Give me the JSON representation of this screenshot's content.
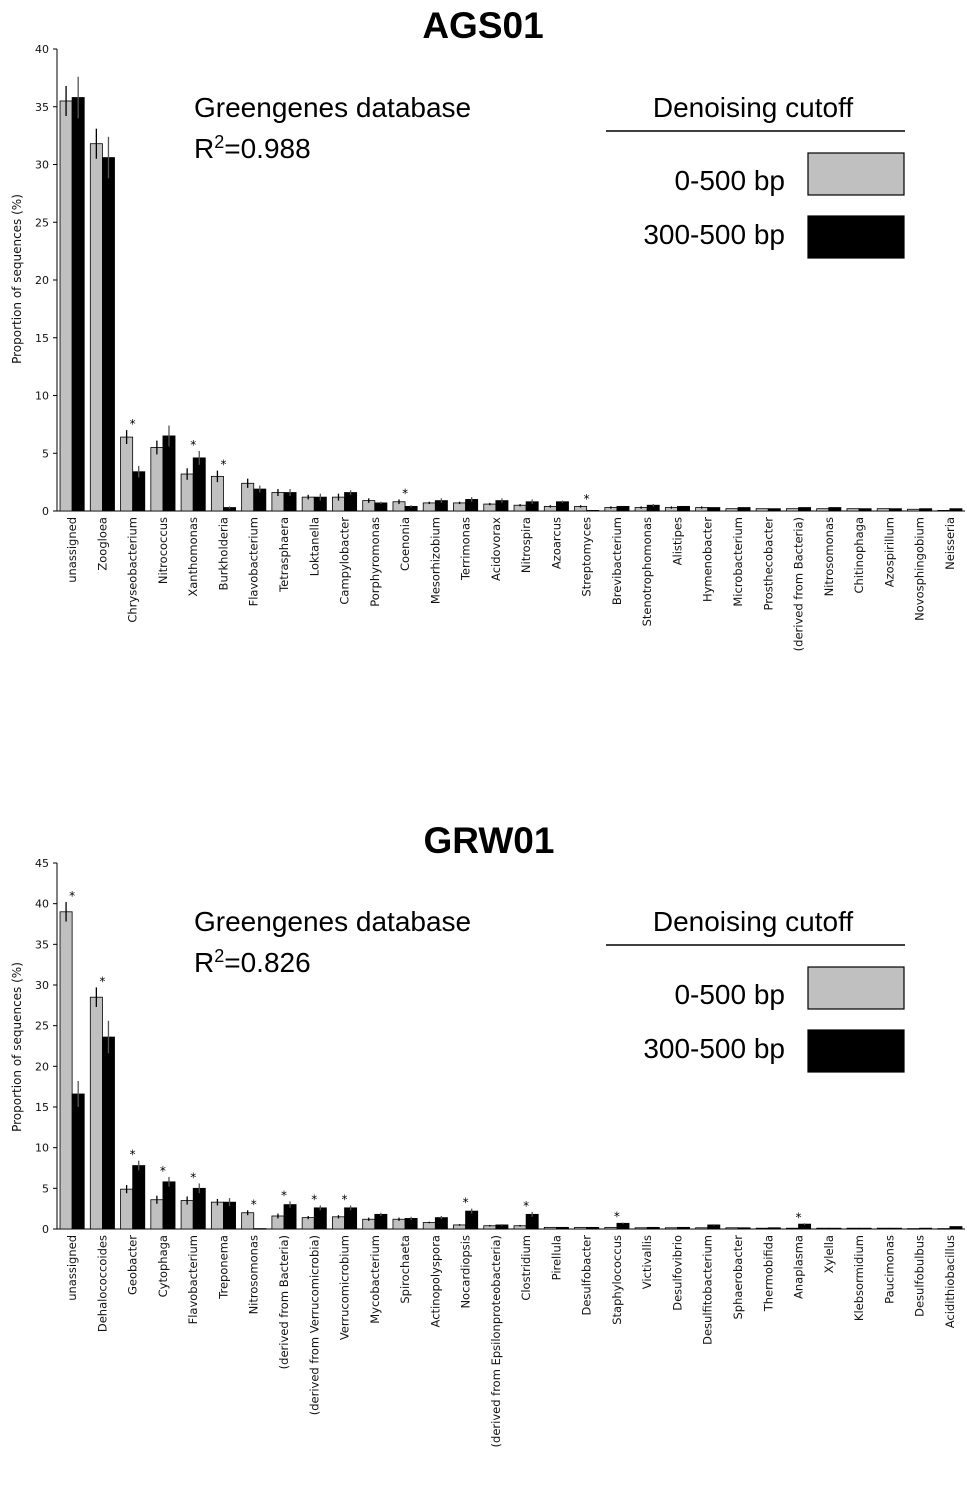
{
  "chart_data": [
    {
      "type": "bar",
      "title": "AGS01",
      "annotation": "Greengenes database",
      "r2_label": "R",
      "r2_sup": "2",
      "r2_value": "=0.988",
      "legend_title": "Denoising cutoff",
      "legend": "top-right",
      "ylabel": "Proportion of sequences (%)",
      "ylim": [
        0,
        40
      ],
      "yticks": [
        0,
        5,
        10,
        15,
        20,
        25,
        30,
        35,
        40
      ],
      "categories": [
        "unassigned",
        "Zoogloea",
        "Chryseobacterium",
        "Nitrococcus",
        "Xanthomonas",
        "Burkholderia",
        "Flavobacterium",
        "Tetrasphaera",
        "Loktanella",
        "Campylobacter",
        "Porphyromonas",
        "Coenonia",
        "Mesorhizobium",
        "Terrimonas",
        "Acidovorax",
        "Nitrospira",
        "Azoarcus",
        "Streptomyces",
        "Brevibacterium",
        "Stenotrophomonas",
        "Alistipes",
        "Hymenobacter",
        "Microbacterium",
        "Prosthecobacter",
        "(derived from Bacteria)",
        "Nitrosomonas",
        "Chitinophaga",
        "Azospirillum",
        "Novosphingobium",
        "Neisseria"
      ],
      "series": [
        {
          "name": "0-500 bp",
          "color": "#c0c0c0",
          "values": [
            35.5,
            31.8,
            6.4,
            5.5,
            3.2,
            3.0,
            2.4,
            1.6,
            1.2,
            1.2,
            0.9,
            0.8,
            0.7,
            0.7,
            0.6,
            0.5,
            0.4,
            0.4,
            0.3,
            0.3,
            0.3,
            0.3,
            0.2,
            0.2,
            0.2,
            0.2,
            0.2,
            0.2,
            0.15,
            0.05
          ],
          "errors": [
            1.3,
            1.3,
            0.6,
            0.6,
            0.5,
            0.5,
            0.4,
            0.3,
            0.2,
            0.3,
            0.2,
            0.2,
            0.1,
            0.1,
            0.1,
            0.1,
            0.1,
            0.1,
            0.1,
            0.1,
            0.1,
            0.1,
            0.05,
            0.05,
            0.05,
            0.05,
            0.05,
            0.05,
            0.05,
            0.05
          ]
        },
        {
          "name": "300-500 bp",
          "color": "#000000",
          "values": [
            35.8,
            30.6,
            3.4,
            6.5,
            4.6,
            0.3,
            1.9,
            1.6,
            1.2,
            1.6,
            0.7,
            0.4,
            0.9,
            1.0,
            0.9,
            0.8,
            0.8,
            0.05,
            0.4,
            0.5,
            0.4,
            0.3,
            0.3,
            0.2,
            0.3,
            0.3,
            0.2,
            0.2,
            0.2,
            0.2
          ],
          "errors": [
            1.8,
            1.8,
            0.5,
            0.9,
            0.6,
            0.1,
            0.3,
            0.3,
            0.3,
            0.2,
            0.1,
            0.1,
            0.2,
            0.2,
            0.2,
            0.2,
            0.1,
            0.05,
            0.05,
            0.1,
            0.05,
            0.05,
            0.05,
            0.05,
            0.05,
            0.05,
            0.05,
            0.05,
            0.05,
            0.05
          ]
        }
      ],
      "significant": [
        2,
        4,
        5,
        11,
        17
      ],
      "star_label": "*"
    },
    {
      "type": "bar",
      "title": "GRW01",
      "annotation": "Greengenes database",
      "r2_label": "R",
      "r2_sup": "2",
      "r2_value": "=0.826",
      "legend_title": "Denoising cutoff",
      "legend": "top-right",
      "ylabel": "Proportion of sequences (%)",
      "ylim": [
        0,
        45
      ],
      "yticks": [
        0,
        5,
        10,
        15,
        20,
        25,
        30,
        35,
        40,
        45
      ],
      "categories": [
        "unassigned",
        "Dehalococcoides",
        "Geobacter",
        "Cytophaga",
        "Flavobacterium",
        "Treponema",
        "Nitrosomonas",
        "(derived from Bacteria)",
        "(derived from Verrucomicrobia)",
        "Verrucomicrobium",
        "Mycobacterium",
        "Spirochaeta",
        "Actinopolyspora",
        "Nocardiopsis",
        "(derived from Epsilonproteobacteria)",
        "Clostridium",
        "Pirellula",
        "Desulfobacter",
        "Staphylococcus",
        "Victivallis",
        "Desulfovibrio",
        "Desulfitobacterium",
        "Sphaerobacter",
        "Thermobifida",
        "Anaplasma",
        "Xylella",
        "Klebsormidium",
        "Paucimonas",
        "Desulfobulbus",
        "Acidithiobacillus"
      ],
      "series": [
        {
          "name": "0-500 bp",
          "color": "#c0c0c0",
          "values": [
            39.0,
            28.5,
            4.9,
            3.6,
            3.5,
            3.3,
            2.0,
            1.6,
            1.4,
            1.5,
            1.2,
            1.2,
            0.8,
            0.5,
            0.4,
            0.4,
            0.2,
            0.2,
            0.2,
            0.15,
            0.15,
            0.15,
            0.15,
            0.1,
            0.1,
            0.1,
            0.1,
            0.1,
            0.05,
            0.05
          ],
          "errors": [
            1.2,
            1.2,
            0.5,
            0.5,
            0.5,
            0.4,
            0.3,
            0.3,
            0.2,
            0.2,
            0.2,
            0.2,
            0.1,
            0.1,
            0.1,
            0.1,
            0.05,
            0.05,
            0.05,
            0.05,
            0.05,
            0.05,
            0.05,
            0.05,
            0.05,
            0.05,
            0.05,
            0.05,
            0.05,
            0.05
          ]
        },
        {
          "name": "300-500 bp",
          "color": "#000000",
          "values": [
            16.6,
            23.6,
            7.8,
            5.8,
            5.0,
            3.3,
            0.05,
            3.0,
            2.6,
            2.6,
            1.8,
            1.3,
            1.4,
            2.2,
            0.5,
            1.8,
            0.2,
            0.2,
            0.7,
            0.2,
            0.2,
            0.5,
            0.15,
            0.15,
            0.6,
            0.1,
            0.1,
            0.1,
            0.1,
            0.3
          ],
          "errors": [
            1.6,
            2.0,
            0.6,
            0.6,
            0.6,
            0.5,
            0.05,
            0.4,
            0.3,
            0.3,
            0.2,
            0.2,
            0.2,
            0.3,
            0.1,
            0.3,
            0.05,
            0.05,
            0.1,
            0.05,
            0.05,
            0.1,
            0.05,
            0.05,
            0.1,
            0.05,
            0.05,
            0.05,
            0.05,
            0.05
          ]
        }
      ],
      "significant": [
        0,
        1,
        2,
        3,
        4,
        6,
        7,
        8,
        9,
        13,
        15,
        18,
        24
      ],
      "star_label": "*"
    }
  ]
}
